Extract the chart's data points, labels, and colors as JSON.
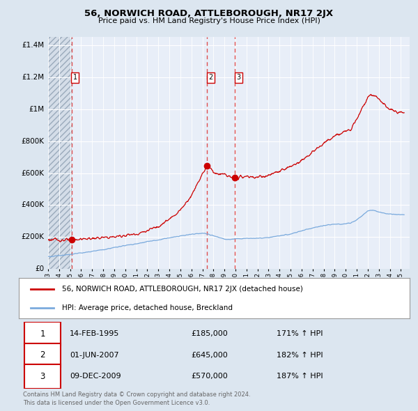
{
  "title": "56, NORWICH ROAD, ATTLEBOROUGH, NR17 2JX",
  "subtitle": "Price paid vs. HM Land Registry's House Price Index (HPI)",
  "legend_line1": "56, NORWICH ROAD, ATTLEBOROUGH, NR17 2JX (detached house)",
  "legend_line2": "HPI: Average price, detached house, Breckland",
  "sale_color": "#cc0000",
  "hpi_color": "#7aaadd",
  "bg_color": "#dce6f0",
  "plot_bg": "#e8eef8",
  "grid_color": "#ffffff",
  "dashed_line_color": "#dd3333",
  "transactions": [
    {
      "num": 1,
      "date_label": "14-FEB-1995",
      "date_x": 1995.12,
      "price": 185000,
      "hpi_pct": "171% ↑ HPI"
    },
    {
      "num": 2,
      "date_label": "01-JUN-2007",
      "date_x": 2007.42,
      "price": 645000,
      "hpi_pct": "182% ↑ HPI"
    },
    {
      "num": 3,
      "date_label": "09-DEC-2009",
      "date_x": 2009.93,
      "price": 570000,
      "hpi_pct": "187% ↑ HPI"
    }
  ],
  "ylim": [
    0,
    1450000
  ],
  "xlim_start": 1993.0,
  "xlim_end": 2025.8,
  "yticks": [
    0,
    200000,
    400000,
    600000,
    800000,
    1000000,
    1200000,
    1400000
  ],
  "ytick_labels": [
    "£0",
    "£200K",
    "£400K",
    "£600K",
    "£800K",
    "£1M",
    "£1.2M",
    "£1.4M"
  ],
  "footer_text": "Contains HM Land Registry data © Crown copyright and database right 2024.\nThis data is licensed under the Open Government Licence v3.0.",
  "hatch_end_x": 1995.12,
  "prop_key_years": [
    1993,
    1994.0,
    1994.8,
    1995.12,
    1996,
    1997,
    1998,
    1999,
    2000,
    2001,
    2002,
    2003,
    2004,
    2005,
    2006,
    2006.5,
    2007.0,
    2007.42,
    2007.8,
    2008.0,
    2008.5,
    2009.0,
    2009.5,
    2009.93,
    2010.2,
    2010.5,
    2011,
    2012,
    2013,
    2014,
    2015,
    2016,
    2017,
    2018,
    2019,
    2020,
    2020.5,
    2021,
    2021.5,
    2022,
    2022.3,
    2022.7,
    2023,
    2023.5,
    2024,
    2024.5,
    2025.3
  ],
  "prop_key_vals": [
    185000,
    183000,
    182000,
    185000,
    188000,
    192000,
    196000,
    202000,
    212000,
    220000,
    240000,
    270000,
    310000,
    370000,
    460000,
    530000,
    595000,
    645000,
    625000,
    610000,
    590000,
    595000,
    575000,
    570000,
    572000,
    575000,
    578000,
    574000,
    585000,
    610000,
    640000,
    680000,
    730000,
    785000,
    830000,
    860000,
    885000,
    940000,
    1010000,
    1070000,
    1090000,
    1085000,
    1060000,
    1030000,
    1000000,
    985000,
    975000
  ],
  "hpi_key_years": [
    1993,
    1994,
    1995,
    1996,
    1997,
    1998,
    1999,
    2000,
    2001,
    2002,
    2003,
    2004,
    2005,
    2006,
    2007,
    2007.5,
    2008,
    2008.5,
    2009,
    2009.5,
    2010,
    2011,
    2012,
    2013,
    2014,
    2015,
    2016,
    2017,
    2018,
    2019,
    2020,
    2020.5,
    2021,
    2021.5,
    2022,
    2022.5,
    2023,
    2023.5,
    2024,
    2024.5,
    2025.3
  ],
  "hpi_key_vals": [
    78000,
    85000,
    93000,
    102000,
    112000,
    122000,
    135000,
    148000,
    158000,
    172000,
    183000,
    196000,
    208000,
    218000,
    225000,
    220000,
    208000,
    198000,
    188000,
    186000,
    190000,
    192000,
    193000,
    197000,
    208000,
    220000,
    240000,
    258000,
    272000,
    282000,
    283000,
    290000,
    308000,
    335000,
    365000,
    370000,
    358000,
    350000,
    345000,
    342000,
    340000
  ]
}
